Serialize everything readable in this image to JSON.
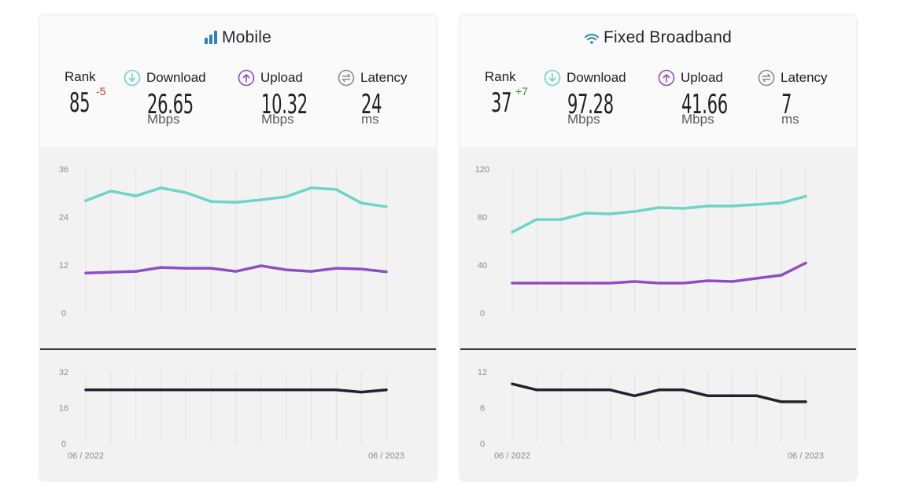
{
  "panels": [
    {
      "id": "mobile",
      "title": "Mobile",
      "title_icon": "signal-bars-icon",
      "rank": {
        "label": "Rank",
        "value": "85",
        "delta": "-5",
        "delta_type": "negative"
      },
      "download": {
        "label": "Download",
        "value": "26.65",
        "unit": "Mbps",
        "icon": "download-arrow-icon"
      },
      "upload": {
        "label": "Upload",
        "value": "10.32",
        "unit": "Mbps",
        "icon": "upload-arrow-icon"
      },
      "latency": {
        "label": "Latency",
        "value": "24",
        "unit": "ms",
        "icon": "latency-arrows-icon"
      }
    },
    {
      "id": "broadband",
      "title": "Fixed Broadband",
      "title_icon": "wifi-icon",
      "rank": {
        "label": "Rank",
        "value": "37",
        "delta": "+7",
        "delta_type": "positive"
      },
      "download": {
        "label": "Download",
        "value": "97.28",
        "unit": "Mbps",
        "icon": "download-arrow-icon"
      },
      "upload": {
        "label": "Upload",
        "value": "41.66",
        "unit": "Mbps",
        "icon": "upload-arrow-icon"
      },
      "latency": {
        "label": "Latency",
        "value": "7",
        "unit": "ms",
        "icon": "latency-arrows-icon"
      }
    }
  ],
  "colors": {
    "download": "#6dd5c8",
    "upload": "#8e4ec6",
    "latency": "#22222e",
    "title_icon": "#2f7fc1",
    "rank_down": "#d0312d",
    "rank_up": "#3c8a2c",
    "latency_icon": "#8a8a92"
  },
  "chart_data": [
    {
      "panel": "mobile",
      "chart": "speed",
      "type": "line",
      "title": "",
      "xlabel": "",
      "ylabel": "Mbps",
      "x": [
        "06/2022",
        "07/2022",
        "08/2022",
        "09/2022",
        "10/2022",
        "11/2022",
        "12/2022",
        "01/2023",
        "02/2023",
        "03/2023",
        "04/2023",
        "05/2023",
        "06/2023"
      ],
      "yticks": [
        0,
        12,
        24,
        36
      ],
      "ylim": [
        0,
        36
      ],
      "grid": "vertical",
      "series": [
        {
          "name": "Download",
          "color": "#6dd5c8",
          "values": [
            28.1,
            30.5,
            29.3,
            31.3,
            30.1,
            27.9,
            27.7,
            28.3,
            29.1,
            31.3,
            30.9,
            27.5,
            26.6
          ]
        },
        {
          "name": "Upload",
          "color": "#8e4ec6",
          "values": [
            10.0,
            10.2,
            10.4,
            11.4,
            11.2,
            11.2,
            10.4,
            11.8,
            10.8,
            10.4,
            11.2,
            11.0,
            10.3
          ]
        }
      ]
    },
    {
      "panel": "mobile",
      "chart": "latency",
      "type": "line",
      "title": "",
      "xlabel": "",
      "ylabel": "ms",
      "x": [
        "06/2022",
        "07/2022",
        "08/2022",
        "09/2022",
        "10/2022",
        "11/2022",
        "12/2022",
        "01/2023",
        "02/2023",
        "03/2023",
        "04/2023",
        "05/2023",
        "06/2023"
      ],
      "xtick_labels": [
        "06 / 2022",
        "06 / 2023"
      ],
      "yticks": [
        0,
        16,
        32
      ],
      "ylim": [
        0,
        32
      ],
      "grid": "vertical",
      "series": [
        {
          "name": "Latency",
          "color": "#22222e",
          "values": [
            24,
            24,
            24,
            24,
            24,
            24,
            24,
            24,
            24,
            24,
            24,
            23,
            24
          ]
        }
      ]
    },
    {
      "panel": "broadband",
      "chart": "speed",
      "type": "line",
      "title": "",
      "xlabel": "",
      "ylabel": "Mbps",
      "x": [
        "06/2022",
        "07/2022",
        "08/2022",
        "09/2022",
        "10/2022",
        "11/2022",
        "12/2022",
        "01/2023",
        "02/2023",
        "03/2023",
        "04/2023",
        "05/2023",
        "06/2023"
      ],
      "yticks": [
        0,
        40,
        80,
        120
      ],
      "ylim": [
        0,
        120
      ],
      "grid": "vertical",
      "series": [
        {
          "name": "Download",
          "color": "#6dd5c8",
          "values": [
            67.5,
            78,
            78,
            83.3,
            82.6,
            84.6,
            87.9,
            87.2,
            89.2,
            89.2,
            90.5,
            91.8,
            97.3
          ]
        },
        {
          "name": "Upload",
          "color": "#8e4ec6",
          "values": [
            24.9,
            24.9,
            24.9,
            24.9,
            24.9,
            26.2,
            24.9,
            24.9,
            26.9,
            26.2,
            28.9,
            31.5,
            41.7
          ]
        }
      ]
    },
    {
      "panel": "broadband",
      "chart": "latency",
      "type": "line",
      "title": "",
      "xlabel": "",
      "ylabel": "ms",
      "x": [
        "06/2022",
        "07/2022",
        "08/2022",
        "09/2022",
        "10/2022",
        "11/2022",
        "12/2022",
        "01/2023",
        "02/2023",
        "03/2023",
        "04/2023",
        "05/2023",
        "06/2023"
      ],
      "xtick_labels": [
        "06 / 2022",
        "06 / 2023"
      ],
      "yticks": [
        0,
        6,
        12
      ],
      "ylim": [
        0,
        12
      ],
      "grid": "vertical",
      "series": [
        {
          "name": "Latency",
          "color": "#22222e",
          "values": [
            10,
            9,
            9,
            9,
            9,
            8,
            9,
            9,
            8,
            8,
            8,
            7,
            7
          ]
        }
      ]
    }
  ]
}
